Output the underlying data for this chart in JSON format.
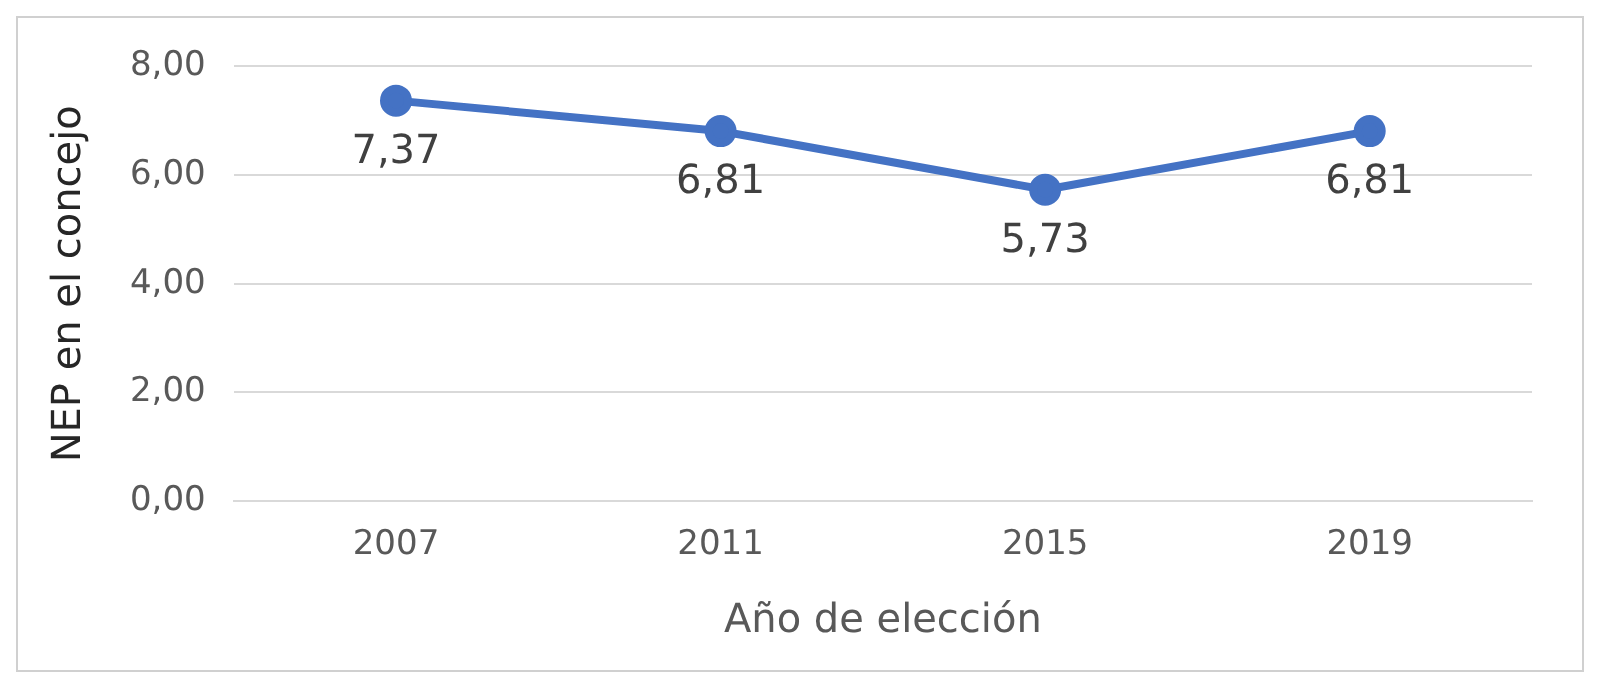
{
  "chart_data": {
    "type": "line",
    "xlabel": "Año de elección",
    "ylabel": "NEP en el concejo",
    "categories": [
      "2007",
      "2011",
      "2015",
      "2019"
    ],
    "series": [
      {
        "color": "#4472c4",
        "values": [
          7.37,
          6.81,
          5.73,
          6.81
        ],
        "value_labels": [
          "7,37",
          "6,81",
          "5,73",
          "6,81"
        ]
      }
    ],
    "ylim": [
      0,
      8
    ],
    "yticks": [
      {
        "value": 0,
        "label": "0,00"
      },
      {
        "value": 2,
        "label": "2,00"
      },
      {
        "value": 4,
        "label": "4,00"
      },
      {
        "value": 6,
        "label": "6,00"
      },
      {
        "value": 8,
        "label": "8,00"
      }
    ],
    "grid": "y",
    "legend": false,
    "marker": "circle",
    "line_style": "solid"
  }
}
